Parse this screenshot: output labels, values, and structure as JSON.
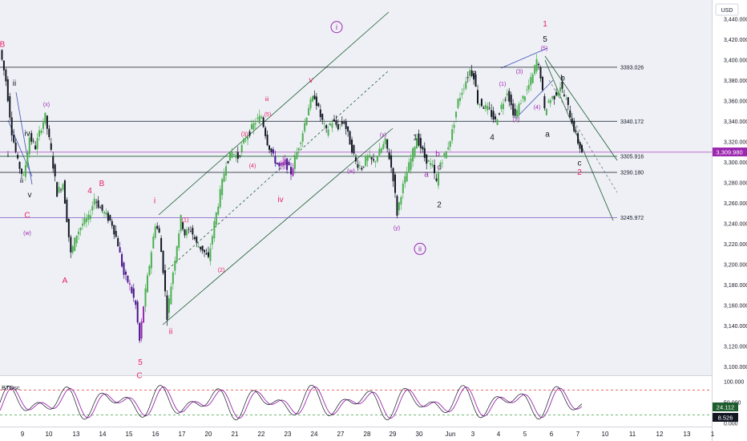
{
  "chart_data": {
    "type": "candlestick",
    "currency": "USD",
    "y_axis": {
      "range": [
        3090,
        3450
      ],
      "ticks": [
        "3,440.000",
        "3,420.000",
        "3,400.000",
        "3,380.000",
        "3,360.000",
        "3,340.000",
        "3,320.000",
        "3,300.000",
        "3,280.000",
        "3,260.000",
        "3,240.000",
        "3,220.000",
        "3,200.000",
        "3,180.000",
        "3,160.000",
        "3,140.000",
        "3,120.000",
        "3,100.000"
      ]
    },
    "x_axis": {
      "ticks": [
        "9",
        "10",
        "13",
        "14",
        "15",
        "16",
        "17",
        "20",
        "21",
        "22",
        "23",
        "24",
        "27",
        "28",
        "29",
        "30",
        "Jun",
        "3",
        "4",
        "5",
        "6",
        "7",
        "10",
        "11",
        "12",
        "13",
        "1"
      ]
    },
    "current_price": {
      "label": "3,309.980",
      "value": 3309.98,
      "color": "#9c27b0"
    },
    "horizontal_levels": [
      {
        "label": "3393.026",
        "value": 3393.026
      },
      {
        "label": "3340.172",
        "value": 3340.172
      },
      {
        "label": "3305.916",
        "value": 3305.916
      },
      {
        "label": "3290.180",
        "value": 3290.18
      },
      {
        "label": "3245.972",
        "value": 3245.972
      }
    ],
    "close_path": [
      {
        "i": 0,
        "v": 3410
      },
      {
        "i": 3,
        "v": 3380
      },
      {
        "i": 6,
        "v": 3330
      },
      {
        "i": 9,
        "v": 3300
      },
      {
        "i": 12,
        "v": 3285
      },
      {
        "i": 15,
        "v": 3325
      },
      {
        "i": 18,
        "v": 3315
      },
      {
        "i": 21,
        "v": 3335
      },
      {
        "i": 23,
        "v": 3345
      },
      {
        "i": 26,
        "v": 3310
      },
      {
        "i": 29,
        "v": 3270
      },
      {
        "i": 32,
        "v": 3280
      },
      {
        "i": 34,
        "v": 3245
      },
      {
        "i": 36,
        "v": 3210
      },
      {
        "i": 39,
        "v": 3230
      },
      {
        "i": 42,
        "v": 3240
      },
      {
        "i": 45,
        "v": 3245
      },
      {
        "i": 48,
        "v": 3265
      },
      {
        "i": 51,
        "v": 3255
      },
      {
        "i": 54,
        "v": 3248
      },
      {
        "i": 57,
        "v": 3240
      },
      {
        "i": 60,
        "v": 3220
      },
      {
        "i": 63,
        "v": 3190
      },
      {
        "i": 66,
        "v": 3180
      },
      {
        "i": 69,
        "v": 3160
      },
      {
        "i": 71,
        "v": 3125
      },
      {
        "i": 73,
        "v": 3160
      },
      {
        "i": 76,
        "v": 3200
      },
      {
        "i": 79,
        "v": 3240
      },
      {
        "i": 81,
        "v": 3230
      },
      {
        "i": 83,
        "v": 3195
      },
      {
        "i": 85,
        "v": 3150
      },
      {
        "i": 87,
        "v": 3180
      },
      {
        "i": 90,
        "v": 3220
      },
      {
        "i": 92,
        "v": 3245
      },
      {
        "i": 94,
        "v": 3230
      },
      {
        "i": 97,
        "v": 3235
      },
      {
        "i": 100,
        "v": 3220
      },
      {
        "i": 103,
        "v": 3215
      },
      {
        "i": 106,
        "v": 3205
      },
      {
        "i": 109,
        "v": 3240
      },
      {
        "i": 112,
        "v": 3270
      },
      {
        "i": 115,
        "v": 3300
      },
      {
        "i": 118,
        "v": 3310
      },
      {
        "i": 121,
        "v": 3305
      },
      {
        "i": 124,
        "v": 3320
      },
      {
        "i": 127,
        "v": 3330
      },
      {
        "i": 130,
        "v": 3340
      },
      {
        "i": 133,
        "v": 3345
      },
      {
        "i": 136,
        "v": 3320
      },
      {
        "i": 139,
        "v": 3305
      },
      {
        "i": 142,
        "v": 3295
      },
      {
        "i": 145,
        "v": 3300
      },
      {
        "i": 148,
        "v": 3290
      },
      {
        "i": 151,
        "v": 3310
      },
      {
        "i": 154,
        "v": 3330
      },
      {
        "i": 157,
        "v": 3355
      },
      {
        "i": 160,
        "v": 3365
      },
      {
        "i": 163,
        "v": 3345
      },
      {
        "i": 166,
        "v": 3330
      },
      {
        "i": 169,
        "v": 3340
      },
      {
        "i": 172,
        "v": 3335
      },
      {
        "i": 175,
        "v": 3340
      },
      {
        "i": 178,
        "v": 3320
      },
      {
        "i": 181,
        "v": 3300
      },
      {
        "i": 184,
        "v": 3295
      },
      {
        "i": 187,
        "v": 3305
      },
      {
        "i": 190,
        "v": 3300
      },
      {
        "i": 193,
        "v": 3310
      },
      {
        "i": 196,
        "v": 3320
      },
      {
        "i": 198,
        "v": 3305
      },
      {
        "i": 200,
        "v": 3285
      },
      {
        "i": 202,
        "v": 3250
      },
      {
        "i": 204,
        "v": 3270
      },
      {
        "i": 207,
        "v": 3290
      },
      {
        "i": 210,
        "v": 3310
      },
      {
        "i": 212,
        "v": 3325
      },
      {
        "i": 214,
        "v": 3315
      },
      {
        "i": 216,
        "v": 3305
      },
      {
        "i": 218,
        "v": 3300
      },
      {
        "i": 220,
        "v": 3295
      },
      {
        "i": 222,
        "v": 3280
      },
      {
        "i": 224,
        "v": 3300
      },
      {
        "i": 227,
        "v": 3310
      },
      {
        "i": 230,
        "v": 3330
      },
      {
        "i": 233,
        "v": 3360
      },
      {
        "i": 236,
        "v": 3375
      },
      {
        "i": 239,
        "v": 3390
      },
      {
        "i": 241,
        "v": 3385
      },
      {
        "i": 243,
        "v": 3360
      },
      {
        "i": 246,
        "v": 3355
      },
      {
        "i": 249,
        "v": 3350
      },
      {
        "i": 252,
        "v": 3340
      },
      {
        "i": 255,
        "v": 3355
      },
      {
        "i": 258,
        "v": 3370
      },
      {
        "i": 260,
        "v": 3355
      },
      {
        "i": 262,
        "v": 3345
      },
      {
        "i": 265,
        "v": 3360
      },
      {
        "i": 268,
        "v": 3370
      },
      {
        "i": 271,
        "v": 3385
      },
      {
        "i": 273,
        "v": 3400
      },
      {
        "i": 275,
        "v": 3385
      },
      {
        "i": 277,
        "v": 3350
      },
      {
        "i": 279,
        "v": 3360
      },
      {
        "i": 282,
        "v": 3365
      },
      {
        "i": 285,
        "v": 3375
      },
      {
        "i": 288,
        "v": 3360
      },
      {
        "i": 291,
        "v": 3340
      },
      {
        "i": 294,
        "v": 3320
      },
      {
        "i": 296,
        "v": 3310
      }
    ],
    "oscillator": {
      "name": "BTOsc",
      "ticks": [
        "100.000",
        "50.000",
        "0.000"
      ],
      "value_a": "24.112",
      "value_b": "8.526"
    },
    "annotations": [
      {
        "text": "B",
        "color": "#e91e63",
        "x": 3,
        "v": 3413
      },
      {
        "text": "ii",
        "color": "#131722",
        "x": 18,
        "v": 3375
      },
      {
        "text": "(x)",
        "color": "#9c27b0",
        "x": 58,
        "v": 3355
      },
      {
        "text": "iv",
        "color": "#131722",
        "x": 34,
        "v": 3326
      },
      {
        "text": "i",
        "color": "#131722",
        "x": 10,
        "v": 3305
      },
      {
        "text": "iii",
        "color": "#131722",
        "x": 27,
        "v": 3280
      },
      {
        "text": "v",
        "color": "#131722",
        "x": 37,
        "v": 3266
      },
      {
        "text": "C",
        "color": "#e91e63",
        "x": 34,
        "v": 3246
      },
      {
        "text": "(w)",
        "color": "#9c27b0",
        "x": 34,
        "v": 3229
      },
      {
        "text": "4",
        "color": "#e91e63",
        "x": 112,
        "v": 3270
      },
      {
        "text": "B",
        "color": "#e91e63",
        "x": 127,
        "v": 3277
      },
      {
        "text": "A",
        "color": "#e91e63",
        "x": 81,
        "v": 3182
      },
      {
        "text": "5",
        "color": "#e91e63",
        "x": 175,
        "v": 3102
      },
      {
        "text": "C",
        "color": "#e91e63",
        "x": 174,
        "v": 3089
      },
      {
        "text": "i",
        "color": "#e91e63",
        "x": 193,
        "v": 3260
      },
      {
        "text": "ii",
        "color": "#e91e63",
        "x": 213,
        "v": 3132
      },
      {
        "text": "(1)",
        "color": "#e91e63",
        "x": 231,
        "v": 3242
      },
      {
        "text": "(2)",
        "color": "#e91e63",
        "x": 276,
        "v": 3193
      },
      {
        "text": "(3)",
        "color": "#e91e63",
        "x": 305,
        "v": 3326
      },
      {
        "text": "(4)",
        "color": "#e91e63",
        "x": 315,
        "v": 3295
      },
      {
        "text": "(5)",
        "color": "#e91e63",
        "x": 334,
        "v": 3345
      },
      {
        "text": "iii",
        "color": "#e91e63",
        "x": 333,
        "v": 3360
      },
      {
        "text": "v",
        "color": "#e91e63",
        "x": 388,
        "v": 3378
      },
      {
        "text": "iv",
        "color": "#e91e63",
        "x": 350,
        "v": 3261
      },
      {
        "text": "(w)",
        "color": "#9c27b0",
        "x": 438,
        "v": 3290
      },
      {
        "text": "(x)",
        "color": "#9c27b0",
        "x": 478,
        "v": 3325
      },
      {
        "text": "(y)",
        "color": "#9c27b0",
        "x": 495,
        "v": 3234
      },
      {
        "text": "1",
        "color": "#131722",
        "x": 518,
        "v": 3322
      },
      {
        "text": "b",
        "color": "#9c27b0",
        "x": 546,
        "v": 3306
      },
      {
        "text": "a",
        "color": "#9c27b0",
        "x": 532,
        "v": 3286
      },
      {
        "text": "c",
        "color": "#9c27b0",
        "x": 548,
        "v": 3293
      },
      {
        "text": "2",
        "color": "#131722",
        "x": 548,
        "v": 3256
      },
      {
        "text": "3",
        "color": "#131722",
        "x": 592,
        "v": 3384
      },
      {
        "text": "(1)",
        "color": "#9c27b0",
        "x": 627,
        "v": 3375
      },
      {
        "text": "(3)",
        "color": "#9c27b0",
        "x": 648,
        "v": 3387
      },
      {
        "text": "(2)",
        "color": "#9c27b0",
        "x": 644,
        "v": 3340
      },
      {
        "text": "(4)",
        "color": "#9c27b0",
        "x": 670,
        "v": 3352
      },
      {
        "text": "(5)",
        "color": "#9c27b0",
        "x": 679,
        "v": 3410
      },
      {
        "text": "4",
        "color": "#131722",
        "x": 614,
        "v": 3322
      },
      {
        "text": "1",
        "color": "#e91e63",
        "x": 680,
        "v": 3433
      },
      {
        "text": "5",
        "color": "#131722",
        "x": 680,
        "v": 3418
      },
      {
        "text": "b",
        "color": "#131722",
        "x": 702,
        "v": 3380
      },
      {
        "text": "a",
        "color": "#131722",
        "x": 683,
        "v": 3325
      },
      {
        "text": "c",
        "color": "#131722",
        "x": 723,
        "v": 3297
      },
      {
        "text": "2",
        "color": "#e91e63",
        "x": 723,
        "v": 3288
      }
    ],
    "circled_labels": [
      {
        "text": "i",
        "color": "#9c27b0",
        "x": 420,
        "v": 3430
      },
      {
        "text": "ii",
        "color": "#9c27b0",
        "x": 524,
        "v": 3213
      }
    ]
  }
}
